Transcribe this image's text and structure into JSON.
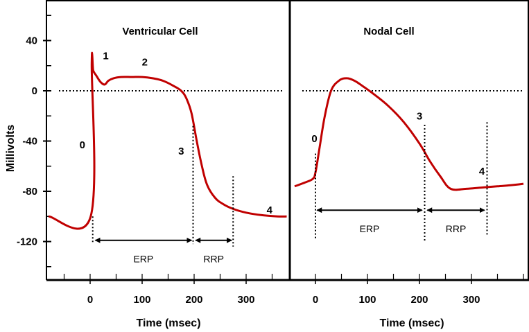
{
  "chart_data": [
    {
      "type": "line",
      "title": "Ventricular Cell",
      "xlabel": "Time (msec)",
      "ylabel": "Millivolts",
      "xlim": [
        -80,
        380
      ],
      "ylim": [
        -150,
        70
      ],
      "x_ticks": [
        0,
        100,
        200,
        300
      ],
      "y_ticks": [
        40,
        0,
        -40,
        -80,
        -120
      ],
      "curve_color": "#c00000",
      "series": [
        {
          "x": [
            -80,
            1,
            3,
            6,
            12,
            20,
            28,
            35,
            45,
            60,
            80,
            100,
            120,
            140,
            160,
            175,
            185,
            195,
            205,
            215,
            225,
            240,
            255,
            275,
            300,
            330,
            360,
            378
          ],
          "y": [
            -100,
            -100,
            22,
            16,
            12,
            7,
            5,
            8,
            10,
            11,
            11,
            11,
            10,
            8,
            4,
            0,
            -6,
            -18,
            -40,
            -60,
            -75,
            -85,
            -90,
            -94,
            -97,
            -99,
            -100,
            -100
          ]
        }
      ],
      "baseline_y": 0,
      "phase_labels": [
        {
          "text": "0",
          "x": -15,
          "y": -43
        },
        {
          "text": "1",
          "x": 30,
          "y": 28
        },
        {
          "text": "2",
          "x": 105,
          "y": 23
        },
        {
          "text": "3",
          "x": 175,
          "y": -48
        },
        {
          "text": "4",
          "x": 345,
          "y": -95
        }
      ],
      "vlines": [
        {
          "x": 5,
          "y_top": -100,
          "y_bottom": -122
        },
        {
          "x": 198,
          "y_top": -28,
          "y_bottom": -122
        },
        {
          "x": 275,
          "y_top": -68,
          "y_bottom": -124
        }
      ],
      "intervals": [
        {
          "label": "ERP",
          "from": 10,
          "to": 195,
          "y": -119
        },
        {
          "label": "RRP",
          "from": 203,
          "to": 272,
          "y": -119
        }
      ]
    },
    {
      "type": "line",
      "title": "Nodal Cell",
      "xlabel": "Time (msec)",
      "ylabel": "",
      "xlim": [
        -40,
        410
      ],
      "ylim": [
        -150,
        70
      ],
      "x_ticks": [
        0,
        100,
        200,
        300
      ],
      "curve_color": "#c00000",
      "series": [
        {
          "x": [
            -40,
            -20,
            -5,
            0,
            8,
            18,
            30,
            45,
            60,
            75,
            90,
            110,
            140,
            170,
            200,
            220,
            240,
            260,
            290,
            320,
            350,
            380,
            400
          ],
          "y": [
            -76,
            -73,
            -70,
            -65,
            -45,
            -20,
            0,
            8,
            10,
            8,
            4,
            -2,
            -12,
            -25,
            -42,
            -56,
            -68,
            -78,
            -78,
            -77,
            -76,
            -75,
            -74
          ]
        }
      ],
      "baseline_y": 0,
      "phase_labels": [
        {
          "text": "0",
          "x": -2,
          "y": -38
        },
        {
          "text": "3",
          "x": 200,
          "y": -20
        },
        {
          "text": "4",
          "x": 320,
          "y": -64
        }
      ],
      "vlines": [
        {
          "x": 0,
          "y_top": -50,
          "y_bottom": -118
        },
        {
          "x": 210,
          "y_top": -27,
          "y_bottom": -120
        },
        {
          "x": 330,
          "y_top": -25,
          "y_bottom": -115
        }
      ],
      "intervals": [
        {
          "label": "ERP",
          "from": 3,
          "to": 205,
          "y": -95
        },
        {
          "label": "RRP",
          "from": 215,
          "to": 325,
          "y": -95
        }
      ]
    }
  ]
}
